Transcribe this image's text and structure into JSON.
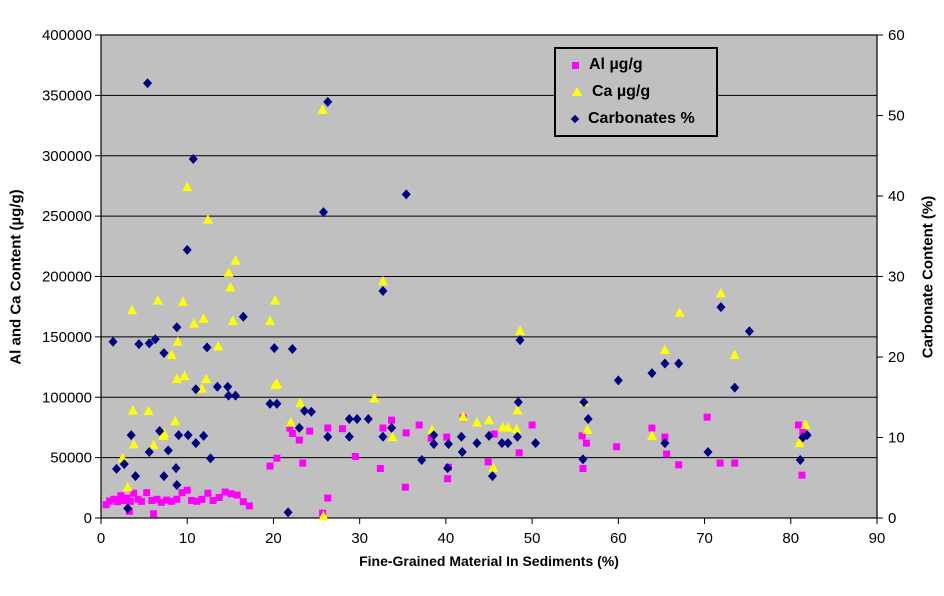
{
  "chart_data": {
    "type": "scatter",
    "title": "",
    "xlabel": "Fine-Grained Material In Sediments (%)",
    "ylabel_left": "Al and Ca Content (µg/g)",
    "ylabel_right": "Carbonate Content (%)",
    "x_axis": {
      "min": 0,
      "max": 90,
      "step": 10
    },
    "y_axis_left": {
      "min": 0,
      "max": 400000,
      "step": 50000
    },
    "y_axis_right": {
      "min": 0,
      "max": 60,
      "step": 10
    },
    "grid": "horizontal-only",
    "legend_position": "top-right-inside",
    "colors": {
      "al": "#FF00FF",
      "ca": "#FFFF00",
      "carbonates": "#000080",
      "plot_background": "#C0C0C0",
      "gridline": "#000000",
      "chart_background": "#FFFFFF"
    },
    "series": [
      {
        "name": "Al µg/g",
        "axis": "left",
        "marker": "square",
        "color": "#FF00FF",
        "points": [
          [
            0.6,
            11000
          ],
          [
            1.0,
            14000
          ],
          [
            1.5,
            15500
          ],
          [
            1.9,
            13500
          ],
          [
            2.3,
            18500
          ],
          [
            2.6,
            14500
          ],
          [
            3.0,
            16500
          ],
          [
            3.3,
            5500
          ],
          [
            3.4,
            13800
          ],
          [
            3.8,
            20500
          ],
          [
            4.3,
            15500
          ],
          [
            4.7,
            13800
          ],
          [
            5.3,
            21000
          ],
          [
            5.9,
            14500
          ],
          [
            6.1,
            3500
          ],
          [
            6.5,
            15500
          ],
          [
            7.0,
            13000
          ],
          [
            7.6,
            14800
          ],
          [
            8.2,
            13800
          ],
          [
            8.8,
            15500
          ],
          [
            9.4,
            21000
          ],
          [
            10.0,
            23000
          ],
          [
            10.5,
            14500
          ],
          [
            11.1,
            13800
          ],
          [
            11.7,
            15500
          ],
          [
            12.4,
            20500
          ],
          [
            13.0,
            14500
          ],
          [
            13.7,
            17000
          ],
          [
            14.4,
            21500
          ],
          [
            15.1,
            20000
          ],
          [
            15.8,
            19000
          ],
          [
            16.5,
            13500
          ],
          [
            17.2,
            10000
          ],
          [
            19.6,
            43000
          ],
          [
            20.4,
            49500
          ],
          [
            21.9,
            74500
          ],
          [
            22.2,
            70000
          ],
          [
            23.0,
            64500
          ],
          [
            23.4,
            45500
          ],
          [
            24.2,
            72000
          ],
          [
            25.7,
            4000
          ],
          [
            26.3,
            74500
          ],
          [
            26.3,
            16500
          ],
          [
            28.0,
            74000
          ],
          [
            29.5,
            51000
          ],
          [
            32.4,
            41000
          ],
          [
            32.7,
            74500
          ],
          [
            33.7,
            81000
          ],
          [
            35.3,
            25500
          ],
          [
            35.4,
            70500
          ],
          [
            36.9,
            77000
          ],
          [
            38.3,
            66000
          ],
          [
            40.1,
            67000
          ],
          [
            40.2,
            32500
          ],
          [
            40.3,
            42000
          ],
          [
            42.0,
            83000
          ],
          [
            44.9,
            46500
          ],
          [
            45.6,
            69500
          ],
          [
            48.5,
            54000
          ],
          [
            50.0,
            77000
          ],
          [
            55.8,
            68000
          ],
          [
            55.9,
            41000
          ],
          [
            56.3,
            62000
          ],
          [
            59.8,
            59000
          ],
          [
            63.9,
            74500
          ],
          [
            65.4,
            67000
          ],
          [
            65.6,
            53000
          ],
          [
            67.0,
            44000
          ],
          [
            70.3,
            83500
          ],
          [
            71.8,
            45500
          ],
          [
            73.5,
            45500
          ],
          [
            80.9,
            77000
          ],
          [
            81.3,
            35500
          ],
          [
            81.4,
            71000
          ]
        ]
      },
      {
        "name": "Ca µg/g",
        "axis": "left",
        "marker": "triangle",
        "color": "#FFFF00",
        "points": [
          [
            2.5,
            49500
          ],
          [
            3.1,
            25500
          ],
          [
            3.6,
            172000
          ],
          [
            3.7,
            89000
          ],
          [
            3.8,
            61000
          ],
          [
            5.5,
            88500
          ],
          [
            6.1,
            60500
          ],
          [
            6.6,
            180000
          ],
          [
            7.2,
            68000
          ],
          [
            7.3,
            70000
          ],
          [
            8.2,
            135000
          ],
          [
            8.6,
            80000
          ],
          [
            8.8,
            115000
          ],
          [
            8.9,
            146000
          ],
          [
            9.5,
            179000
          ],
          [
            9.7,
            117500
          ],
          [
            10.0,
            274000
          ],
          [
            10.8,
            161000
          ],
          [
            11.7,
            107000
          ],
          [
            11.9,
            165000
          ],
          [
            12.2,
            115000
          ],
          [
            12.4,
            247000
          ],
          [
            13.6,
            142000
          ],
          [
            14.8,
            203000
          ],
          [
            15.0,
            191000
          ],
          [
            15.3,
            163000
          ],
          [
            15.6,
            213000
          ],
          [
            19.6,
            163000
          ],
          [
            20.2,
            180000
          ],
          [
            20.2,
            110000
          ],
          [
            20.4,
            111000
          ],
          [
            22.0,
            79000
          ],
          [
            23.1,
            95000
          ],
          [
            25.7,
            338000
          ],
          [
            25.8,
            1500
          ],
          [
            31.7,
            99000
          ],
          [
            32.7,
            196000
          ],
          [
            33.8,
            67000
          ],
          [
            38.4,
            73000
          ],
          [
            42.0,
            83500
          ],
          [
            43.6,
            79000
          ],
          [
            45.0,
            81000
          ],
          [
            45.5,
            41500
          ],
          [
            46.6,
            75000
          ],
          [
            47.2,
            75000
          ],
          [
            48.2,
            73500
          ],
          [
            48.3,
            89000
          ],
          [
            48.6,
            155000
          ],
          [
            56.0,
            96000
          ],
          [
            56.4,
            73000
          ],
          [
            63.9,
            68000
          ],
          [
            65.4,
            139000
          ],
          [
            67.1,
            170000
          ],
          [
            71.9,
            186000
          ],
          [
            73.5,
            135000
          ],
          [
            81.0,
            62000
          ],
          [
            81.7,
            77000
          ]
        ]
      },
      {
        "name": "Carbonates %",
        "axis": "right",
        "marker": "diamond",
        "color": "#000080",
        "points": [
          [
            1.4,
            21.9
          ],
          [
            1.8,
            6.1
          ],
          [
            2.7,
            6.7
          ],
          [
            3.1,
            1.2
          ],
          [
            3.5,
            10.3
          ],
          [
            4.0,
            5.2
          ],
          [
            4.4,
            21.6
          ],
          [
            5.4,
            54.0
          ],
          [
            5.6,
            21.7
          ],
          [
            5.6,
            8.2
          ],
          [
            6.3,
            22.2
          ],
          [
            6.8,
            10.8
          ],
          [
            7.3,
            20.5
          ],
          [
            7.3,
            5.2
          ],
          [
            7.8,
            8.4
          ],
          [
            8.7,
            6.2
          ],
          [
            8.8,
            23.7
          ],
          [
            8.8,
            4.1
          ],
          [
            9.0,
            10.3
          ],
          [
            10.0,
            33.3
          ],
          [
            10.1,
            10.3
          ],
          [
            10.7,
            44.6
          ],
          [
            11.0,
            16.0
          ],
          [
            11.0,
            9.3
          ],
          [
            11.9,
            10.2
          ],
          [
            12.3,
            21.2
          ],
          [
            12.7,
            7.4
          ],
          [
            13.5,
            16.3
          ],
          [
            14.7,
            16.3
          ],
          [
            14.8,
            15.2
          ],
          [
            15.6,
            15.2
          ],
          [
            16.5,
            25.0
          ],
          [
            19.6,
            14.2
          ],
          [
            20.1,
            21.1
          ],
          [
            20.4,
            14.2
          ],
          [
            21.7,
            0.7
          ],
          [
            22.2,
            21.0
          ],
          [
            23.0,
            11.2
          ],
          [
            23.6,
            13.3
          ],
          [
            24.4,
            13.2
          ],
          [
            25.8,
            38.0
          ],
          [
            26.3,
            51.7
          ],
          [
            26.3,
            10.1
          ],
          [
            28.8,
            12.3
          ],
          [
            28.8,
            10.1
          ],
          [
            29.7,
            12.3
          ],
          [
            31.0,
            12.3
          ],
          [
            32.7,
            28.2
          ],
          [
            32.7,
            10.1
          ],
          [
            33.7,
            11.2
          ],
          [
            35.4,
            40.2
          ],
          [
            37.2,
            7.2
          ],
          [
            38.6,
            10.3
          ],
          [
            38.6,
            9.2
          ],
          [
            40.2,
            6.2
          ],
          [
            40.3,
            9.2
          ],
          [
            41.8,
            10.1
          ],
          [
            41.9,
            8.2
          ],
          [
            43.6,
            9.3
          ],
          [
            45.0,
            10.2
          ],
          [
            45.4,
            5.2
          ],
          [
            46.5,
            9.3
          ],
          [
            47.2,
            9.3
          ],
          [
            48.3,
            10.1
          ],
          [
            48.4,
            14.4
          ],
          [
            48.6,
            22.1
          ],
          [
            50.4,
            9.3
          ],
          [
            55.9,
            7.3
          ],
          [
            56.0,
            14.4
          ],
          [
            56.5,
            12.3
          ],
          [
            60.0,
            17.1
          ],
          [
            63.9,
            18.0
          ],
          [
            65.4,
            19.2
          ],
          [
            65.4,
            9.3
          ],
          [
            67.0,
            19.2
          ],
          [
            70.4,
            8.2
          ],
          [
            71.9,
            26.2
          ],
          [
            73.5,
            16.2
          ],
          [
            75.2,
            23.2
          ],
          [
            81.1,
            7.2
          ],
          [
            81.4,
            10.0
          ],
          [
            81.9,
            10.3
          ]
        ]
      }
    ]
  }
}
